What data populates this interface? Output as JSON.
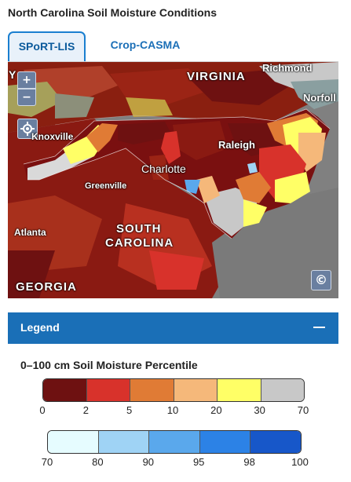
{
  "page": {
    "title": "North Carolina Soil Moisture Conditions"
  },
  "tabs": [
    {
      "label": "SPoRT-LIS",
      "active": true
    },
    {
      "label": "Crop-CASMA",
      "active": false
    }
  ],
  "map": {
    "controls": {
      "zoom_in": "+",
      "zoom_out": "−",
      "attribution": "©"
    },
    "labels": {
      "virginia": "VIRGINIA",
      "richmond": "Richmond",
      "norfolk": "Norfoll",
      "knoxville": "Knoxville",
      "raleigh": "Raleigh",
      "charlotte": "Charlotte",
      "greenville": "Greenville",
      "atlanta": "Atlanta",
      "south_carolina_1": "SOUTH",
      "south_carolina_2": "CAROLINA",
      "georgia": "GEORGIA",
      "clipped_y": "Y"
    }
  },
  "legend": {
    "header": "Legend",
    "subtitle": "0–100 cm Soil Moisture Percentile",
    "dry_scale": {
      "colors": [
        "#6e1111",
        "#d8322b",
        "#e07b35",
        "#f5b87a",
        "#ffff66",
        "#c8c8c8"
      ],
      "ticks": [
        "0",
        "2",
        "5",
        "10",
        "20",
        "30",
        "70"
      ]
    },
    "wet_scale": {
      "colors": [
        "#e6fcff",
        "#9fd3f5",
        "#5aa8ec",
        "#2c82e6",
        "#1757c9"
      ],
      "ticks": [
        "70",
        "80",
        "90",
        "95",
        "98",
        "100"
      ]
    }
  }
}
